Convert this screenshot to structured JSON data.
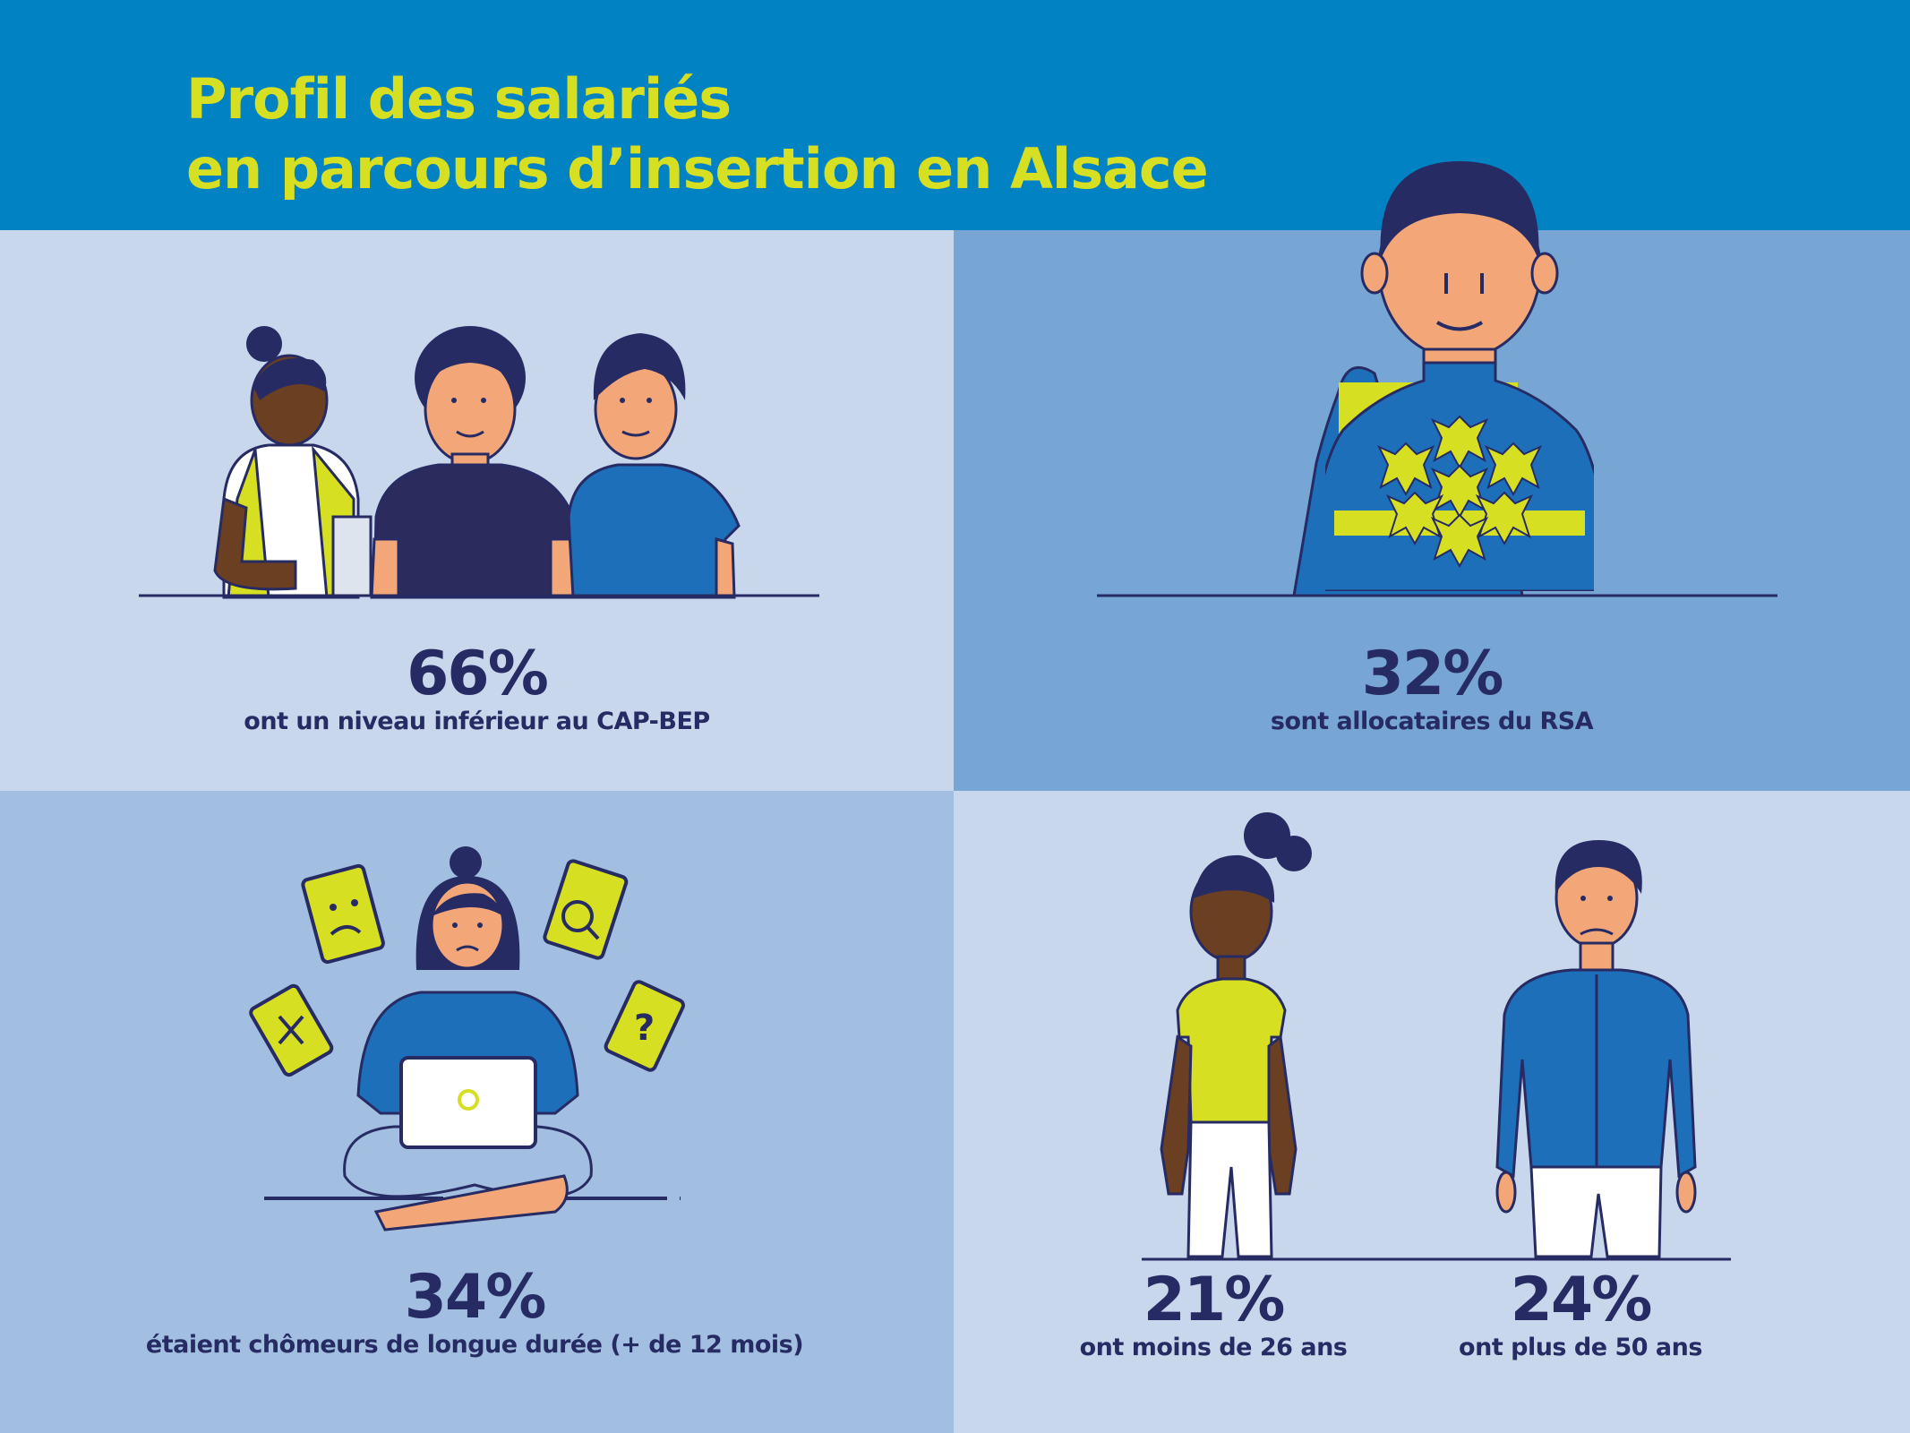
{
  "header": {
    "title_line1": "Profil des salariés",
    "title_line2": "en parcours d’insertion en Alsace"
  },
  "stats": {
    "education": {
      "value": "66%",
      "label": "ont un niveau inférieur au CAP-BEP"
    },
    "rsa": {
      "value": "32%",
      "label": "sont allocataires du RSA"
    },
    "unemployed": {
      "value": "34%",
      "label": "étaient chômeurs de longue durée (+ de 12 mois)"
    },
    "under26": {
      "value": "21%",
      "label": "ont moins de 26 ans"
    },
    "over50": {
      "value": "24%",
      "label": "ont plus de 50 ans"
    }
  },
  "colors": {
    "header_bg": "#0082C3",
    "title": "#D7DF23",
    "text_dark": "#272B63",
    "panel_light": "#C8D7EC",
    "panel_mid": "#77A5D4",
    "panel_soft": "#A2BEE0",
    "accent_yellow": "#D7DF23",
    "shirt_blue": "#1E6FBA"
  },
  "illustrations": {
    "education": "three-people-illustration",
    "rsa": "person-with-figures-sweater-illustration",
    "unemployed": "woman-with-laptop-and-documents-illustration",
    "under26": "young-woman-illustration",
    "over50": "older-man-illustration"
  }
}
